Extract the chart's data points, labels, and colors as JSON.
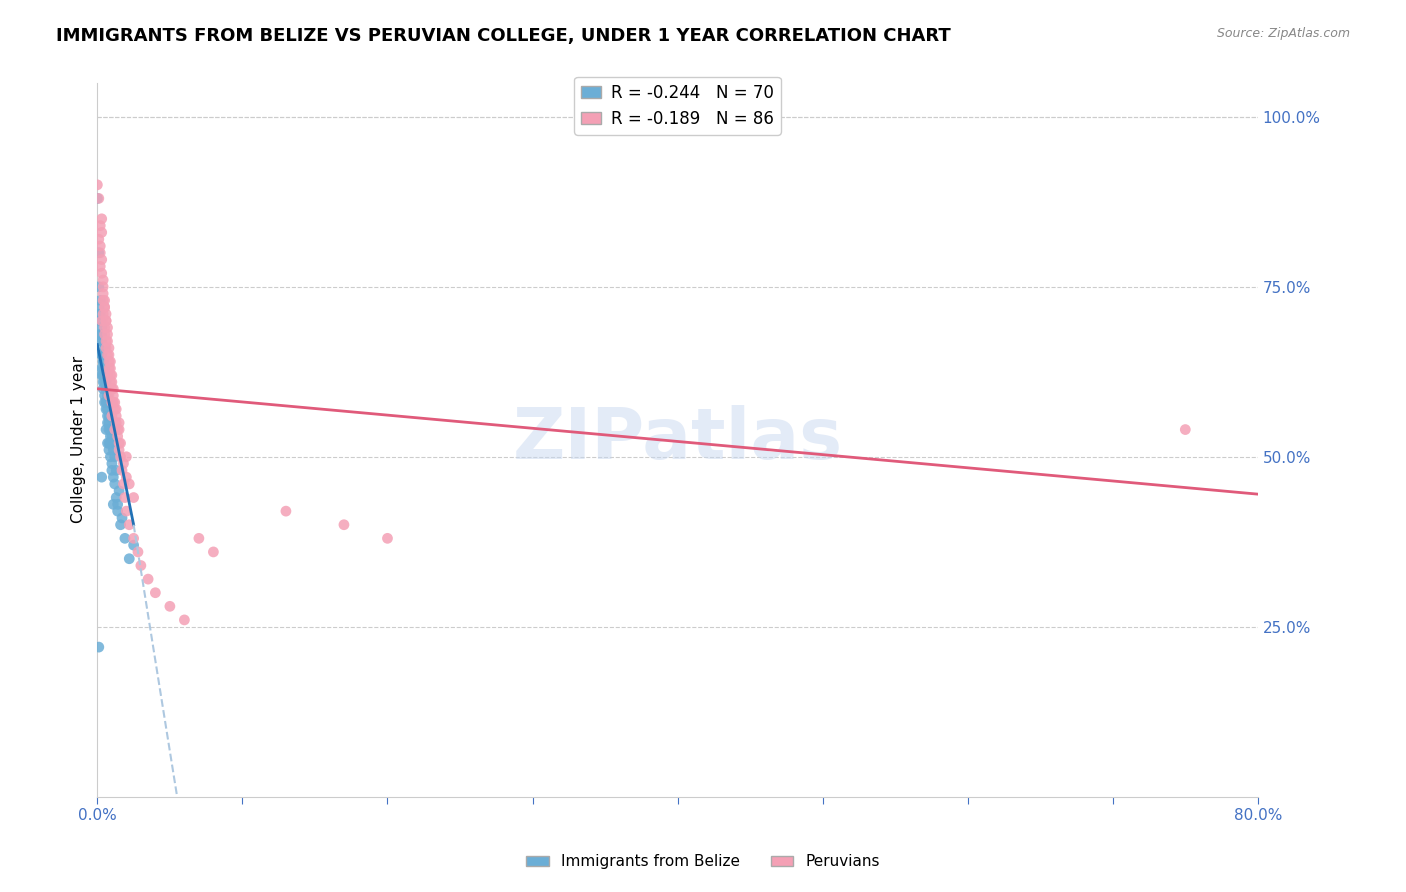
{
  "title": "IMMIGRANTS FROM BELIZE VS PERUVIAN COLLEGE, UNDER 1 YEAR CORRELATION CHART",
  "source_text": "Source: ZipAtlas.com",
  "xlabel": "",
  "ylabel": "College, Under 1 year",
  "legend_label1": "Immigrants from Belize",
  "legend_label2": "Peruvians",
  "r1": -0.244,
  "n1": 70,
  "r2": -0.189,
  "n2": 86,
  "color1": "#6baed6",
  "color2": "#f4a0b5",
  "trendline1_color": "#2171b5",
  "trendline2_color": "#e05a7a",
  "dashed_color": "#aec8e0",
  "watermark": "ZIPatlas",
  "xlim": [
    0.0,
    0.8
  ],
  "ylim": [
    0.0,
    1.05
  ],
  "xticks": [
    0.0,
    0.1,
    0.2,
    0.3,
    0.4,
    0.5,
    0.6,
    0.7,
    0.8
  ],
  "xticklabels": [
    "0.0%",
    "",
    "",
    "",
    "",
    "",
    "",
    "",
    "80.0%"
  ],
  "yticks_right": [
    0.25,
    0.5,
    0.75,
    1.0
  ],
  "ytick_right_labels": [
    "25.0%",
    "50.0%",
    "75.0%",
    "100.0%"
  ],
  "belize_x": [
    0.0,
    0.001,
    0.002,
    0.001,
    0.003,
    0.002,
    0.004,
    0.003,
    0.001,
    0.005,
    0.002,
    0.004,
    0.006,
    0.003,
    0.007,
    0.005,
    0.002,
    0.004,
    0.008,
    0.003,
    0.006,
    0.004,
    0.009,
    0.005,
    0.007,
    0.003,
    0.006,
    0.008,
    0.004,
    0.01,
    0.002,
    0.005,
    0.009,
    0.007,
    0.011,
    0.004,
    0.006,
    0.008,
    0.012,
    0.003,
    0.007,
    0.01,
    0.005,
    0.013,
    0.009,
    0.006,
    0.011,
    0.004,
    0.015,
    0.008,
    0.013,
    0.007,
    0.011,
    0.005,
    0.009,
    0.014,
    0.003,
    0.017,
    0.012,
    0.006,
    0.016,
    0.01,
    0.008,
    0.019,
    0.014,
    0.007,
    0.022,
    0.003,
    0.001,
    0.025
  ],
  "belize_y": [
    0.88,
    0.72,
    0.67,
    0.8,
    0.65,
    0.7,
    0.63,
    0.68,
    0.75,
    0.62,
    0.73,
    0.64,
    0.6,
    0.69,
    0.58,
    0.66,
    0.71,
    0.62,
    0.56,
    0.67,
    0.61,
    0.64,
    0.54,
    0.63,
    0.59,
    0.65,
    0.6,
    0.55,
    0.62,
    0.53,
    0.68,
    0.61,
    0.52,
    0.57,
    0.51,
    0.6,
    0.58,
    0.54,
    0.5,
    0.63,
    0.56,
    0.49,
    0.59,
    0.48,
    0.53,
    0.57,
    0.47,
    0.61,
    0.45,
    0.52,
    0.44,
    0.55,
    0.43,
    0.58,
    0.5,
    0.42,
    0.62,
    0.41,
    0.46,
    0.54,
    0.4,
    0.48,
    0.51,
    0.38,
    0.43,
    0.52,
    0.35,
    0.47,
    0.22,
    0.37
  ],
  "peruvian_x": [
    0.0,
    0.001,
    0.002,
    0.003,
    0.001,
    0.004,
    0.002,
    0.005,
    0.003,
    0.006,
    0.004,
    0.007,
    0.002,
    0.005,
    0.008,
    0.003,
    0.006,
    0.009,
    0.004,
    0.007,
    0.01,
    0.005,
    0.008,
    0.002,
    0.011,
    0.006,
    0.009,
    0.003,
    0.012,
    0.007,
    0.01,
    0.004,
    0.013,
    0.008,
    0.011,
    0.005,
    0.014,
    0.009,
    0.006,
    0.015,
    0.012,
    0.007,
    0.016,
    0.01,
    0.004,
    0.017,
    0.013,
    0.008,
    0.018,
    0.011,
    0.005,
    0.019,
    0.014,
    0.009,
    0.02,
    0.006,
    0.015,
    0.022,
    0.01,
    0.025,
    0.012,
    0.007,
    0.028,
    0.018,
    0.003,
    0.03,
    0.016,
    0.008,
    0.035,
    0.02,
    0.013,
    0.04,
    0.025,
    0.015,
    0.05,
    0.06,
    0.13,
    0.02,
    0.01,
    0.07,
    0.08,
    0.75,
    0.17,
    0.2,
    0.015,
    0.022
  ],
  "peruvian_y": [
    0.9,
    0.82,
    0.78,
    0.85,
    0.88,
    0.74,
    0.8,
    0.72,
    0.83,
    0.7,
    0.76,
    0.68,
    0.84,
    0.73,
    0.66,
    0.79,
    0.71,
    0.64,
    0.75,
    0.69,
    0.62,
    0.72,
    0.65,
    0.81,
    0.6,
    0.7,
    0.63,
    0.77,
    0.58,
    0.67,
    0.61,
    0.73,
    0.56,
    0.64,
    0.59,
    0.69,
    0.54,
    0.62,
    0.67,
    0.52,
    0.57,
    0.65,
    0.5,
    0.6,
    0.71,
    0.48,
    0.55,
    0.63,
    0.46,
    0.58,
    0.68,
    0.44,
    0.53,
    0.61,
    0.42,
    0.66,
    0.51,
    0.4,
    0.56,
    0.38,
    0.54,
    0.62,
    0.36,
    0.49,
    0.7,
    0.34,
    0.52,
    0.59,
    0.32,
    0.47,
    0.57,
    0.3,
    0.44,
    0.54,
    0.28,
    0.26,
    0.42,
    0.5,
    0.58,
    0.38,
    0.36,
    0.54,
    0.4,
    0.38,
    0.55,
    0.46
  ],
  "trendline1_x0": 0.0,
  "trendline1_y0": 0.665,
  "trendline1_x1": 0.025,
  "trendline1_y1": 0.4,
  "trendline1_dashed_x1": 0.055,
  "trendline1_dashed_y1": 0.0,
  "trendline2_x0": 0.0,
  "trendline2_y0": 0.6,
  "trendline2_x1": 0.8,
  "trendline2_y1": 0.445,
  "title_fontsize": 13,
  "axis_label_color": "#4472c4",
  "grid_color": "#cccccc",
  "background_color": "#ffffff"
}
